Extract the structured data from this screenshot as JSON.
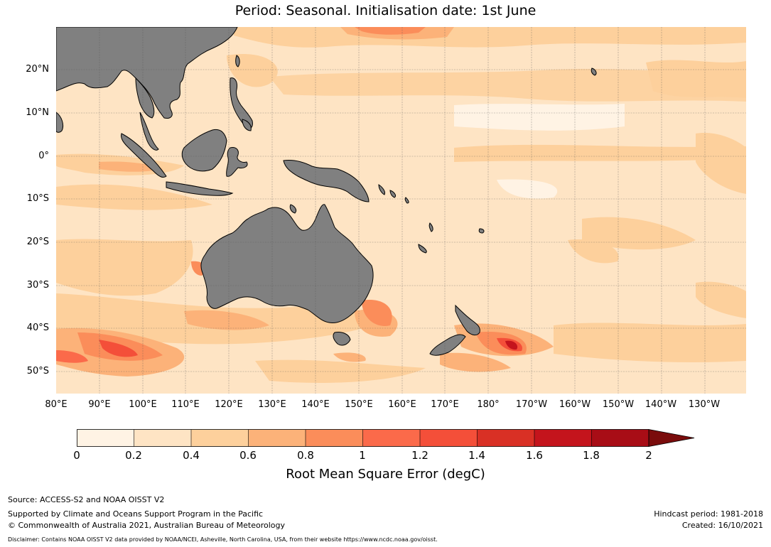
{
  "title": {
    "line1": "",
    "line2": "Period: Seasonal. Initialisation date: 1st June"
  },
  "map": {
    "lat_labels": [
      "20°N",
      "10°N",
      "0°",
      "10°S",
      "20°S",
      "30°S",
      "40°S",
      "50°S"
    ],
    "lon_labels": [
      "80°E",
      "90°E",
      "100°E",
      "110°E",
      "120°E",
      "130°E",
      "140°E",
      "150°E",
      "160°E",
      "170°E",
      "180°",
      "170°W",
      "160°W",
      "150°W",
      "140°W",
      "130°W"
    ],
    "extent": {
      "lon_min": 80,
      "lon_max": 239.5,
      "lat_min": -55,
      "lat_max": 30
    },
    "land_color": "#808080",
    "ocean_base_color": "#fee4c4"
  },
  "colorbar": {
    "ticks": [
      "0",
      "0.2",
      "0.4",
      "0.6",
      "0.8",
      "1",
      "1.2",
      "1.4",
      "1.6",
      "1.8",
      "2"
    ],
    "colors": [
      "#fff3e4",
      "#fee4c4",
      "#fdd09c",
      "#fcb279",
      "#fb8d5a",
      "#fb6a4a",
      "#f44f39",
      "#d93025",
      "#c4141c",
      "#a80d16"
    ],
    "extend_color": "#7a0c0c",
    "label": "Root Mean Square Error (degC)"
  },
  "footer": {
    "source": "Source: ACCESS-S2 and NOAA OISST V2",
    "supported": "Supported by Climate and Oceans Support Program in the Pacific",
    "copyright": "© Commonwealth of Australia 2021, Australian Bureau of Meteorology",
    "hindcast": "Hindcast period: 1981-2018",
    "created": "Created: 16/10/2021",
    "disclaimer": "Disclaimer: Contains NOAA OISST V2 data provided by NOAA/NCEI, Asheville, North Carolina, USA, from their website https://www.ncdc.noaa.gov/oisst."
  }
}
